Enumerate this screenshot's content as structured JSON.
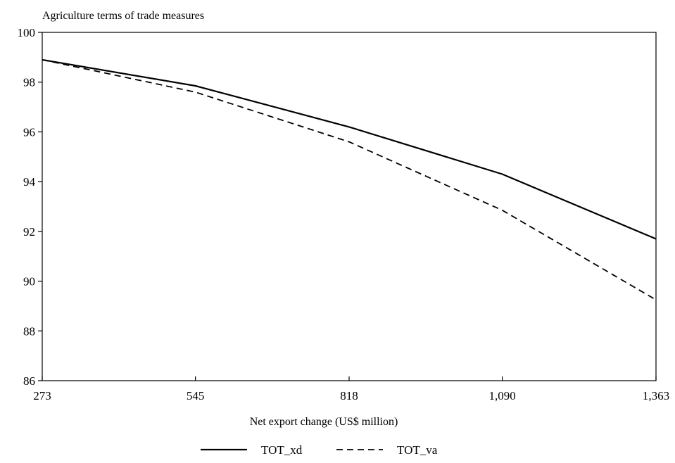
{
  "chart_data": {
    "type": "line",
    "title": "Agriculture terms of trade measures",
    "xlabel": "Net export change (US$ million)",
    "ylabel": "",
    "x": [
      273,
      545,
      818,
      1090,
      1363
    ],
    "x_tick_labels": [
      "273",
      "545",
      "818",
      "1,090",
      "1,363"
    ],
    "ylim": [
      86,
      100
    ],
    "y_ticks": [
      86,
      88,
      90,
      92,
      94,
      96,
      98,
      100
    ],
    "y_tick_labels": [
      "86",
      "88",
      "90",
      "92",
      "94",
      "96",
      "98",
      "100"
    ],
    "grid": false,
    "legend_position": "bottom-center",
    "series": [
      {
        "name": "TOT_xd",
        "style": "solid",
        "color": "#000000",
        "values": [
          98.9,
          97.85,
          96.2,
          94.3,
          91.7
        ]
      },
      {
        "name": "TOT_va",
        "style": "dashed",
        "color": "#000000",
        "values": [
          98.9,
          97.6,
          95.6,
          92.85,
          89.25
        ]
      }
    ]
  }
}
